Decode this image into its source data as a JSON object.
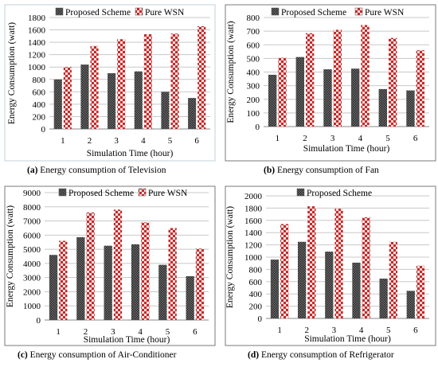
{
  "chart_data": [
    {
      "type": "bar",
      "caption_letter": "(a)",
      "caption_text": "Energy consumption of Television",
      "xlabel": "Simulation Time (hour)",
      "ylabel": "Energy Consumption (watt)",
      "categories": [
        "1",
        "2",
        "3",
        "4",
        "5",
        "6"
      ],
      "ylim": [
        0,
        1800
      ],
      "yticks": [
        0,
        200,
        400,
        600,
        800,
        1000,
        1200,
        1400,
        1600,
        1800
      ],
      "legend_position": "top",
      "grid": true,
      "series": [
        {
          "name": "Proposed Scheme",
          "values": [
            800,
            1040,
            900,
            930,
            600,
            500
          ]
        },
        {
          "name": "Pure WSN",
          "values": [
            1000,
            1340,
            1450,
            1530,
            1540,
            1660
          ]
        }
      ]
    },
    {
      "type": "bar",
      "caption_letter": "(b)",
      "caption_text": "Energy consumption of Fan",
      "xlabel": "Simulation Time (hour)",
      "ylabel": "Energy Consumption (watt)",
      "categories": [
        "1",
        "2",
        "3",
        "4",
        "5",
        "6"
      ],
      "ylim": [
        0,
        800
      ],
      "yticks": [
        0,
        100,
        200,
        300,
        400,
        500,
        600,
        700,
        800
      ],
      "legend_position": "top",
      "grid": true,
      "series": [
        {
          "name": "Proposed Scheme",
          "values": [
            380,
            510,
            420,
            425,
            275,
            265
          ]
        },
        {
          "name": "Pure WSN",
          "values": [
            505,
            685,
            710,
            745,
            650,
            560
          ]
        }
      ]
    },
    {
      "type": "bar",
      "caption_letter": "(c)",
      "caption_text": "Energy consumption of Air-Conditioner",
      "xlabel": "Simulation Time (hour)",
      "ylabel": "Energy Consumption (watt)",
      "categories": [
        "1",
        "2",
        "3",
        "4",
        "5",
        "6"
      ],
      "ylim": [
        0,
        9000
      ],
      "yticks": [
        0,
        1000,
        2000,
        3000,
        4000,
        5000,
        6000,
        7000,
        8000,
        9000
      ],
      "legend_position": "top",
      "grid": true,
      "series": [
        {
          "name": "Proposed Scheme",
          "values": [
            4600,
            5850,
            5250,
            5350,
            3900,
            3100
          ]
        },
        {
          "name": "Pure WSN",
          "values": [
            5600,
            7600,
            7800,
            6900,
            6500,
            5050
          ]
        }
      ]
    },
    {
      "type": "bar",
      "caption_letter": "(d)",
      "caption_text": "Energy consumption of Refrigerator",
      "xlabel": "Simulation Time (hour)",
      "ylabel": "Energy Consumption (watt)",
      "categories": [
        "1",
        "2",
        "3",
        "4",
        "5",
        "6"
      ],
      "ylim": [
        0,
        2000
      ],
      "yticks": [
        0,
        200,
        400,
        600,
        800,
        1000,
        1200,
        1400,
        1600,
        1800,
        2000
      ],
      "legend_position": "top",
      "grid": true,
      "series": [
        {
          "name": "Proposed Scheme",
          "values": [
            960,
            1250,
            1090,
            910,
            650,
            450
          ]
        },
        {
          "name": "",
          "values": [
            1540,
            1830,
            1790,
            1650,
            1250,
            860
          ]
        }
      ]
    }
  ],
  "colors": {
    "proposed_fill": "#6f6f6f",
    "proposed_dot": "#1e1e1e",
    "wsn_light": "#f4dede",
    "wsn_dark": "#c42a2a",
    "grid": "#c8c8c8",
    "frame": "#7a7a7a",
    "frame_faint": "#c0d0d8"
  }
}
